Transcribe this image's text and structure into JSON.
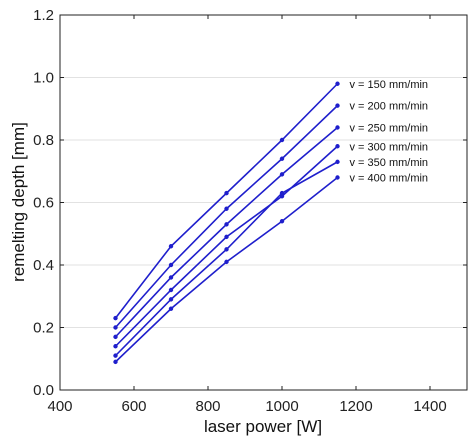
{
  "chart_data": {
    "type": "line",
    "title": "",
    "xlabel": "laser power [W]",
    "ylabel": "remelting depth [mm]",
    "xlim": [
      400,
      1500
    ],
    "ylim": [
      0.0,
      1.2
    ],
    "xticks": [
      400,
      600,
      800,
      1000,
      1200,
      1400
    ],
    "yticks": [
      0.0,
      0.2,
      0.4,
      0.6,
      0.8,
      1.0,
      1.2
    ],
    "ytick_labels": [
      "0.0",
      "0.2",
      "0.4",
      "0.6",
      "0.8",
      "1.0",
      "1.2"
    ],
    "grid": true,
    "legend": "inline-right",
    "line_color": "#1f1fcc",
    "x": [
      550,
      700,
      850,
      1000,
      1150
    ],
    "series": [
      {
        "name": "v = 150 mm/min",
        "values": [
          0.23,
          0.46,
          0.63,
          0.8,
          0.98
        ]
      },
      {
        "name": "v = 200 mm/min",
        "values": [
          0.2,
          0.4,
          0.58,
          0.74,
          0.91
        ]
      },
      {
        "name": "v = 250 mm/min",
        "values": [
          0.17,
          0.36,
          0.53,
          0.69,
          0.84
        ]
      },
      {
        "name": "v = 300 mm/min",
        "values": [
          0.14,
          0.32,
          0.49,
          0.62,
          0.78
        ]
      },
      {
        "name": "v = 350 mm/min",
        "values": [
          0.11,
          0.29,
          0.45,
          0.63,
          0.73
        ]
      },
      {
        "name": "v = 400 mm/min",
        "values": [
          0.09,
          0.26,
          0.41,
          0.54,
          0.68
        ]
      }
    ]
  }
}
